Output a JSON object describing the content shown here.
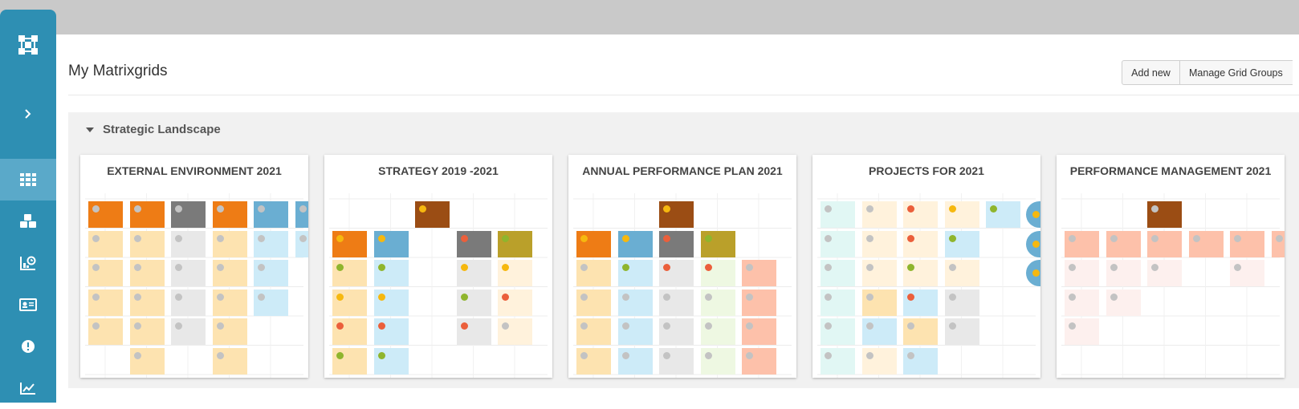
{
  "page": {
    "title": "My Matrixgrids",
    "add_new_label": "Add new",
    "manage_label": "Manage Grid Groups"
  },
  "sidebar": {
    "items": [
      {
        "name": "logo-icon",
        "active": false
      },
      {
        "name": "chevron-right-icon",
        "active": false
      },
      {
        "name": "grid-icon",
        "active": true
      },
      {
        "name": "cubes-icon",
        "active": false
      },
      {
        "name": "chart-clock-icon",
        "active": false
      },
      {
        "name": "id-card-icon",
        "active": false
      },
      {
        "name": "alert-icon",
        "active": false
      },
      {
        "name": "line-chart-icon",
        "active": false
      }
    ]
  },
  "group": {
    "title": "Strategic Landscape"
  },
  "colors": {
    "orange": "#ee7c15",
    "blue": "#6aaed2",
    "gray": "#7a7a7a",
    "brown": "#9b4d14",
    "olive": "#baa02a",
    "pale_orange": "#fde3b0",
    "pale_blue": "#cdebf8",
    "pale_gray": "#e8e8e8",
    "pale_cream": "#fff2dc",
    "pale_green": "#eef8e2",
    "salmon": "#fdc1aa",
    "pale_pink": "#fdf0ee",
    "mint": "#e1f7f4",
    "dot_gray": "#c3c3c3",
    "dot_yellow": "#f6b80f",
    "dot_red": "#eb5f3b",
    "dot_green": "#8fb52d"
  },
  "cards": [
    {
      "title": "EXTERNAL ENVIRONMENT 2021",
      "cells": [
        [
          0,
          0,
          "orange",
          "dot_gray"
        ],
        [
          1,
          0,
          "orange",
          "dot_gray"
        ],
        [
          2,
          0,
          "gray",
          "dot_gray"
        ],
        [
          3,
          0,
          "orange",
          "dot_gray"
        ],
        [
          4,
          0,
          "blue",
          "dot_gray"
        ],
        [
          5,
          0,
          "blue",
          "dot_gray"
        ],
        [
          0,
          1,
          "pale_orange",
          "dot_gray"
        ],
        [
          1,
          1,
          "pale_orange",
          "dot_gray"
        ],
        [
          2,
          1,
          "pale_gray",
          "dot_gray"
        ],
        [
          3,
          1,
          "pale_orange",
          "dot_gray"
        ],
        [
          4,
          1,
          "pale_blue",
          "dot_gray"
        ],
        [
          5,
          1,
          "pale_blue",
          "dot_gray"
        ],
        [
          0,
          2,
          "pale_orange",
          "dot_gray"
        ],
        [
          1,
          2,
          "pale_orange",
          "dot_gray"
        ],
        [
          2,
          2,
          "pale_gray",
          "dot_gray"
        ],
        [
          3,
          2,
          "pale_orange",
          "dot_gray"
        ],
        [
          4,
          2,
          "pale_blue",
          "dot_gray"
        ],
        [
          0,
          3,
          "pale_orange",
          "dot_gray"
        ],
        [
          1,
          3,
          "pale_orange",
          "dot_gray"
        ],
        [
          2,
          3,
          "pale_gray",
          "dot_gray"
        ],
        [
          3,
          3,
          "pale_orange",
          "dot_gray"
        ],
        [
          4,
          3,
          "pale_blue",
          "dot_gray"
        ],
        [
          0,
          4,
          "pale_orange",
          "dot_gray"
        ],
        [
          1,
          4,
          "pale_orange",
          "dot_gray"
        ],
        [
          2,
          4,
          "pale_gray",
          "dot_gray"
        ],
        [
          3,
          4,
          "pale_orange",
          "dot_gray"
        ],
        [
          1,
          5,
          "pale_orange",
          "dot_gray"
        ],
        [
          3,
          5,
          "pale_orange",
          "dot_gray"
        ]
      ]
    },
    {
      "title": "STRATEGY 2019 -2021",
      "cells": [
        [
          2,
          0,
          "brown",
          "dot_yellow"
        ],
        [
          0,
          1,
          "orange",
          "dot_yellow"
        ],
        [
          1,
          1,
          "blue",
          "dot_yellow"
        ],
        [
          3,
          1,
          "gray",
          "dot_red"
        ],
        [
          4,
          1,
          "olive",
          "dot_green"
        ],
        [
          0,
          2,
          "pale_orange",
          "dot_green"
        ],
        [
          1,
          2,
          "pale_blue",
          "dot_green"
        ],
        [
          3,
          2,
          "pale_gray",
          "dot_yellow"
        ],
        [
          4,
          2,
          "pale_cream",
          "dot_yellow"
        ],
        [
          0,
          3,
          "pale_orange",
          "dot_yellow"
        ],
        [
          1,
          3,
          "pale_blue",
          "dot_yellow"
        ],
        [
          3,
          3,
          "pale_gray",
          "dot_green"
        ],
        [
          4,
          3,
          "pale_cream",
          "dot_red"
        ],
        [
          0,
          4,
          "pale_orange",
          "dot_red"
        ],
        [
          1,
          4,
          "pale_blue",
          "dot_red"
        ],
        [
          3,
          4,
          "pale_gray",
          "dot_red"
        ],
        [
          4,
          4,
          "pale_cream",
          "dot_gray"
        ],
        [
          0,
          5,
          "pale_orange",
          "dot_green"
        ],
        [
          1,
          5,
          "pale_blue",
          "dot_green"
        ]
      ]
    },
    {
      "title": "ANNUAL PERFORMANCE PLAN 2021",
      "cells": [
        [
          2,
          0,
          "brown",
          "dot_yellow"
        ],
        [
          0,
          1,
          "orange",
          "dot_yellow"
        ],
        [
          1,
          1,
          "blue",
          "dot_yellow"
        ],
        [
          2,
          1,
          "gray",
          "dot_red"
        ],
        [
          3,
          1,
          "olive",
          "dot_green"
        ],
        [
          0,
          2,
          "pale_orange",
          "dot_gray"
        ],
        [
          1,
          2,
          "pale_blue",
          "dot_green"
        ],
        [
          2,
          2,
          "pale_gray",
          "dot_red"
        ],
        [
          3,
          2,
          "pale_green",
          "dot_red"
        ],
        [
          4,
          2,
          "salmon",
          "dot_gray"
        ],
        [
          0,
          3,
          "pale_orange",
          "dot_gray"
        ],
        [
          1,
          3,
          "pale_blue",
          "dot_gray"
        ],
        [
          2,
          3,
          "pale_gray",
          "dot_gray"
        ],
        [
          3,
          3,
          "pale_green",
          "dot_gray"
        ],
        [
          4,
          3,
          "salmon",
          "dot_gray"
        ],
        [
          0,
          4,
          "pale_orange",
          "dot_gray"
        ],
        [
          1,
          4,
          "pale_blue",
          "dot_gray"
        ],
        [
          2,
          4,
          "pale_gray",
          "dot_gray"
        ],
        [
          3,
          4,
          "pale_green",
          "dot_gray"
        ],
        [
          4,
          4,
          "salmon",
          "dot_gray"
        ],
        [
          0,
          5,
          "pale_orange",
          "dot_gray"
        ],
        [
          1,
          5,
          "pale_blue",
          "dot_gray"
        ],
        [
          2,
          5,
          "pale_gray",
          "dot_gray"
        ],
        [
          3,
          5,
          "pale_green",
          "dot_gray"
        ],
        [
          4,
          5,
          "salmon",
          "dot_gray"
        ]
      ]
    },
    {
      "title": "PROJECTS FOR 2021",
      "cells": [
        [
          0,
          0,
          "mint",
          "dot_gray"
        ],
        [
          1,
          0,
          "pale_cream",
          "dot_gray"
        ],
        [
          2,
          0,
          "pale_cream",
          "dot_red"
        ],
        [
          3,
          0,
          "pale_cream",
          "dot_yellow"
        ],
        [
          4,
          0,
          "pale_blue",
          "dot_green"
        ],
        [
          0,
          1,
          "mint",
          "dot_gray"
        ],
        [
          1,
          1,
          "pale_cream",
          "dot_gray"
        ],
        [
          2,
          1,
          "pale_cream",
          "dot_red"
        ],
        [
          3,
          1,
          "pale_blue",
          "dot_green"
        ],
        [
          0,
          2,
          "mint",
          "dot_gray"
        ],
        [
          1,
          2,
          "pale_cream",
          "dot_gray"
        ],
        [
          2,
          2,
          "pale_cream",
          "dot_green"
        ],
        [
          3,
          2,
          "pale_cream",
          "dot_gray"
        ],
        [
          0,
          3,
          "mint",
          "dot_gray"
        ],
        [
          1,
          3,
          "pale_orange",
          "dot_gray"
        ],
        [
          2,
          3,
          "pale_blue",
          "dot_red"
        ],
        [
          3,
          3,
          "pale_gray",
          "dot_gray"
        ],
        [
          0,
          4,
          "mint",
          "dot_gray"
        ],
        [
          1,
          4,
          "pale_blue",
          "dot_gray"
        ],
        [
          2,
          4,
          "pale_orange",
          "dot_gray"
        ],
        [
          3,
          4,
          "pale_gray",
          "dot_gray"
        ],
        [
          0,
          5,
          "mint",
          "dot_gray"
        ],
        [
          1,
          5,
          "pale_cream",
          "dot_gray"
        ],
        [
          2,
          5,
          "pale_blue",
          "dot_gray"
        ]
      ],
      "pills": [
        0,
        1,
        2
      ]
    },
    {
      "title": "PERFORMANCE MANAGEMENT 2021",
      "cells": [
        [
          2,
          0,
          "brown",
          "dot_gray"
        ],
        [
          0,
          1,
          "salmon",
          "dot_gray"
        ],
        [
          1,
          1,
          "salmon",
          "dot_gray"
        ],
        [
          2,
          1,
          "salmon",
          "dot_gray"
        ],
        [
          3,
          1,
          "salmon",
          "dot_gray"
        ],
        [
          4,
          1,
          "salmon",
          "dot_gray"
        ],
        [
          5,
          1,
          "salmon",
          "dot_gray"
        ],
        [
          0,
          2,
          "pale_pink",
          "dot_gray"
        ],
        [
          1,
          2,
          "pale_pink",
          "dot_gray"
        ],
        [
          2,
          2,
          "pale_pink",
          "dot_gray"
        ],
        [
          4,
          2,
          "pale_pink",
          "dot_gray"
        ],
        [
          0,
          3,
          "pale_pink",
          "dot_gray"
        ],
        [
          1,
          3,
          "pale_pink",
          "dot_gray"
        ],
        [
          0,
          4,
          "pale_pink",
          "dot_gray"
        ]
      ]
    }
  ]
}
